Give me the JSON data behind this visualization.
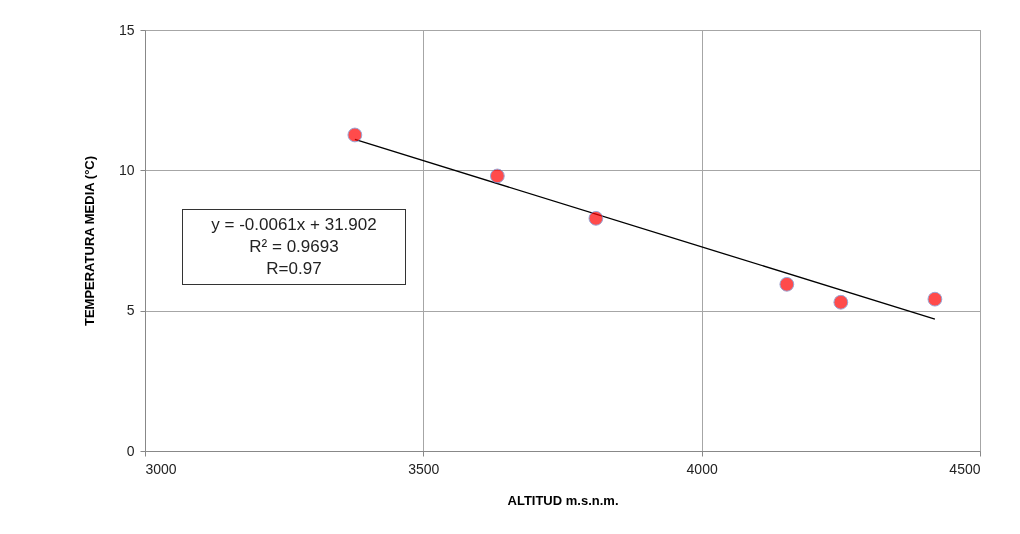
{
  "chart_data": {
    "type": "scatter",
    "xlabel": "ALTITUD m.s.n.m.",
    "ylabel": "TEMPERATURA MEDIA (°C)",
    "xlim": [
      3000,
      4500
    ],
    "xticks": [
      3000,
      3500,
      4000,
      4500
    ],
    "ylim": [
      0,
      15
    ],
    "yticks": [
      0,
      5,
      10,
      15
    ],
    "grid": true,
    "series": [
      {
        "color": "#ff0000",
        "marker": "circle",
        "x": [
          3377,
          3633,
          3810,
          4153,
          4250,
          4419
        ],
        "values": [
          11.26,
          9.8,
          8.29,
          5.94,
          5.3,
          5.41
        ]
      },
      {
        "type": "line",
        "color": "#000000",
        "x": [
          3377,
          4419
        ],
        "values": [
          11.1,
          4.7
        ]
      }
    ],
    "annotations": [
      "y = -0.0061x + 31.902",
      "R² = 0.9693",
      "R=0.97"
    ]
  }
}
